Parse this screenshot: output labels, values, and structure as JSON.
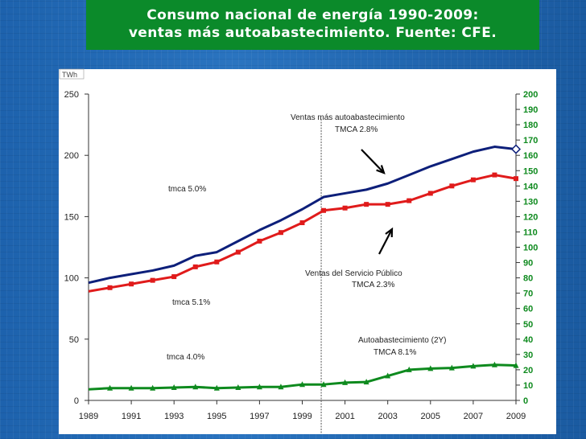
{
  "header": {
    "title_line1": "Consumo nacional de energía 1990-2009:",
    "title_line2": "ventas más autoabastecimiento. Fuente: CFE."
  },
  "chart_data": {
    "type": "line",
    "unit_label": "TWh",
    "x": [
      1989,
      1990,
      1991,
      1992,
      1993,
      1994,
      1995,
      1996,
      1997,
      1998,
      1999,
      2000,
      2001,
      2002,
      2003,
      2004,
      2005,
      2006,
      2007,
      2008,
      2009
    ],
    "x_ticks": [
      "1989",
      "1991",
      "1993",
      "1995",
      "1997",
      "1999",
      "2001",
      "2003",
      "2005",
      "2007",
      "2009"
    ],
    "y_left": {
      "lim": [
        0,
        250
      ],
      "ticks": [
        "0",
        "50",
        "100",
        "150",
        "200",
        "250"
      ]
    },
    "y_right": {
      "lim": [
        0,
        200
      ],
      "ticks": [
        "0",
        "10",
        "20",
        "30",
        "40",
        "50",
        "60",
        "70",
        "80",
        "90",
        "100",
        "110",
        "120",
        "130",
        "140",
        "150",
        "160",
        "170",
        "180",
        "190",
        "200"
      ]
    },
    "series": [
      {
        "key": "total",
        "color": "#0d1f7a",
        "marker": "none",
        "values": [
          96,
          100,
          103,
          106,
          110,
          118,
          121,
          130,
          139,
          147,
          156,
          166,
          169,
          172,
          177,
          184,
          191,
          197,
          203,
          207,
          205
        ]
      },
      {
        "key": "publico",
        "color": "#e01b1b",
        "marker": "square",
        "values": [
          89,
          92,
          95,
          98,
          101,
          109,
          113,
          121,
          130,
          137,
          145,
          155,
          157,
          160,
          160,
          163,
          169,
          175,
          180,
          184,
          181
        ]
      },
      {
        "key": "auto",
        "color": "#0e8a1e",
        "marker": "triangle",
        "values": [
          9,
          10,
          10,
          10,
          10.5,
          11,
          10,
          10.5,
          11,
          11,
          13,
          13,
          14.5,
          15,
          20,
          25,
          26,
          26.5,
          28,
          29,
          28.5
        ]
      }
    ],
    "annotations": {
      "ventas_auto": "Ventas más autoabastecimiento",
      "ventas_auto_tmca": "TMCA 2.8%",
      "tmca_50": "tmca 5.0%",
      "servicio_publico": "Ventas del Servicio Público",
      "servicio_publico_tmca": "TMCA 2.3%",
      "tmca_51": "tmca 5.1%",
      "autoabastecimiento": "Autoabastecimiento  (2Y)",
      "autoabastecimiento_tmca": "TMCA 8.1%",
      "tmca_40": "tmca 4.0%"
    },
    "divider_year": 2000,
    "grid": false
  }
}
